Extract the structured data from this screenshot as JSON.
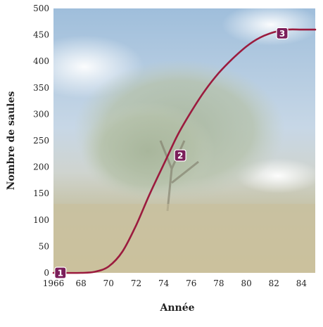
{
  "chart_data": {
    "type": "line",
    "title": "",
    "xlabel": "Année",
    "ylabel": "Nombre de saules",
    "xlim": [
      1966,
      1985
    ],
    "ylim": [
      0,
      500
    ],
    "x_ticks": [
      1966,
      1968,
      1970,
      1972,
      1974,
      1976,
      1978,
      1980,
      1982,
      1984
    ],
    "x_tick_labels": [
      "1966",
      "68",
      "70",
      "72",
      "74",
      "76",
      "78",
      "80",
      "82",
      "84"
    ],
    "y_ticks": [
      0,
      50,
      100,
      150,
      200,
      250,
      300,
      350,
      400,
      450,
      500
    ],
    "y_tick_labels": [
      "0",
      "50",
      "100",
      "150",
      "200",
      "250",
      "300",
      "350",
      "400",
      "450",
      "500"
    ],
    "grid": false,
    "series": [
      {
        "color": "#9b1b3e",
        "x": [
          1966,
          1968,
          1969,
          1970,
          1971,
          1972,
          1973,
          1974,
          1975,
          1976,
          1977,
          1978,
          1979,
          1980,
          1981,
          1982,
          1983,
          1984,
          1985
        ],
        "y": [
          0,
          0,
          2,
          12,
          40,
          90,
          150,
          205,
          260,
          305,
          345,
          378,
          405,
          428,
          445,
          455,
          460,
          460,
          460
        ]
      }
    ],
    "markers": [
      {
        "label": "1",
        "x": 1966.5,
        "y": 0
      },
      {
        "label": "2",
        "x": 1975.2,
        "y": 222
      },
      {
        "label": "3",
        "x": 1982.6,
        "y": 453
      }
    ],
    "colors": {
      "curve": "#9b1b3e",
      "marker_fill": "#7b1e5a",
      "background_sky": "#a9c4dc",
      "background_ground": "#c9c1a0"
    }
  }
}
